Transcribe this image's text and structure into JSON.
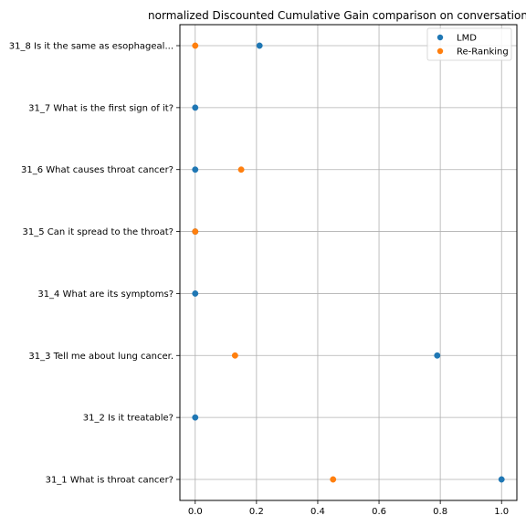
{
  "chart_data": {
    "type": "scatter",
    "title": "normalized Discounted Cumulative Gain comparison on conversation",
    "xlabel": "",
    "ylabel": "",
    "xlim": [
      -0.05,
      1.05
    ],
    "x_ticks": [
      0.0,
      0.2,
      0.4,
      0.6,
      0.8,
      1.0
    ],
    "x_tick_labels": [
      "0.0",
      "0.2",
      "0.4",
      "0.6",
      "0.8",
      "1.0"
    ],
    "grid": true,
    "legend_position": "top-right",
    "categories": [
      "31_1 What is throat cancer?",
      "31_2 Is it treatable?",
      "31_3 Tell me about lung cancer.",
      "31_4 What are its symptoms?",
      "31_5 Can it spread to the throat?",
      "31_6 What causes throat cancer?",
      "31_7 What is the first sign of it?",
      "31_8 Is it the same as esophageal..."
    ],
    "series": [
      {
        "name": "LMD",
        "color": "#1f77b4",
        "values": [
          1.0,
          0.0,
          0.79,
          0.0,
          0.0,
          0.0,
          0.0,
          0.21
        ]
      },
      {
        "name": "Re-Ranking",
        "color": "#ff7f0e",
        "values": [
          0.45,
          null,
          0.13,
          null,
          0.0,
          0.15,
          null,
          0.0
        ]
      }
    ]
  }
}
